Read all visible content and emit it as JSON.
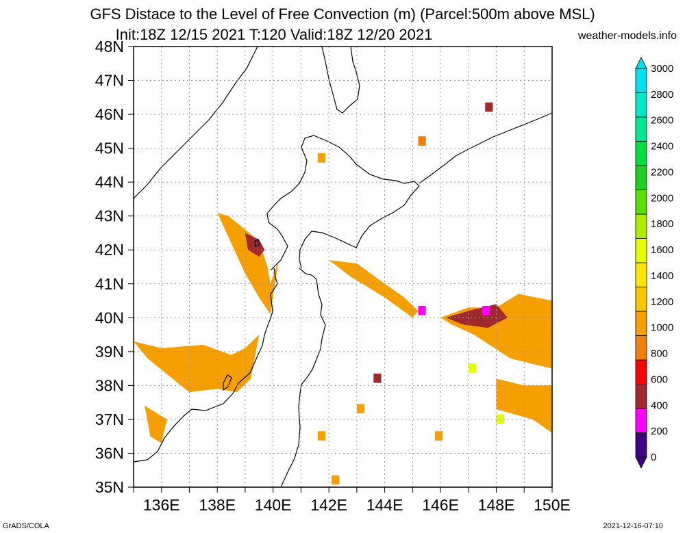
{
  "header": {
    "title_line1": "GFS Distace to the Level of Free Convection (m) (Parcel:500m above MSL)",
    "title_line2": "Init:18Z 12/15 2021 T:120 Valid:18Z 12/20 2021",
    "site": "weather-models.info"
  },
  "map": {
    "lat_labels": [
      "48N",
      "47N",
      "46N",
      "45N",
      "44N",
      "43N",
      "42N",
      "41N",
      "40N",
      "39N",
      "38N",
      "37N",
      "36N",
      "35N"
    ],
    "lon_labels": [
      "136E",
      "138E",
      "140E",
      "142E",
      "144E",
      "146E",
      "148E",
      "150E"
    ],
    "region": {
      "lon_min": 135,
      "lon_max": 150,
      "lat_min": 35,
      "lat_max": 48
    },
    "grid": true,
    "field_patches": [
      {
        "name": "hokkaido-west-coast",
        "lon": [
          138.0,
          138.4,
          139.3,
          139.6,
          139.8,
          139.9,
          140.2,
          139.9,
          139.5,
          139.0,
          138.5,
          138.0
        ],
        "lat": [
          43.1,
          43.0,
          42.4,
          42.0,
          41.5,
          41.0,
          41.7,
          40.1,
          40.6,
          41.3,
          42.2,
          43.1
        ],
        "value": 1000
      },
      {
        "name": "hokkaido-west-red",
        "lon": [
          139.0,
          139.5,
          139.7,
          139.5,
          139.1
        ],
        "lat": [
          42.5,
          42.3,
          42.0,
          41.8,
          42.0
        ],
        "value": 550
      },
      {
        "name": "sanriku-offshore",
        "lon": [
          142.0,
          143.0,
          144.0,
          144.7,
          145.2,
          145.0,
          144.0,
          142.8,
          142.0
        ],
        "lat": [
          41.7,
          41.6,
          41.0,
          40.6,
          40.2,
          40.0,
          40.6,
          41.2,
          41.7
        ],
        "value": 1000
      },
      {
        "name": "tohoku-west",
        "lon": [
          135.0,
          136.0,
          137.5,
          138.5,
          139.0,
          139.5,
          139.2,
          138.7,
          138.0,
          137.0,
          135.5
        ],
        "lat": [
          39.3,
          39.1,
          39.2,
          38.9,
          39.1,
          39.5,
          38.2,
          37.8,
          37.9,
          37.8,
          38.8
        ],
        "value": 1000
      },
      {
        "name": "east-offshore",
        "lon": [
          146.0,
          147.0,
          148.0,
          148.8,
          150.0,
          150.0,
          149.5,
          148.5,
          147.2,
          146.4
        ],
        "lat": [
          40.0,
          40.3,
          40.3,
          40.7,
          40.5,
          38.5,
          38.6,
          38.8,
          39.5,
          39.8
        ],
        "value": 1000
      },
      {
        "name": "east-offshore-red",
        "lon": [
          146.2,
          147.0,
          148.0,
          148.4,
          147.7,
          146.8
        ],
        "lat": [
          40.0,
          40.2,
          40.4,
          40.0,
          39.7,
          39.8
        ],
        "value": 550
      },
      {
        "name": "east-south",
        "lon": [
          148.0,
          149.0,
          150.0,
          150.0,
          149.3,
          148.0
        ],
        "lat": [
          38.2,
          38.0,
          38.0,
          36.6,
          37.0,
          37.3
        ],
        "value": 1000
      },
      {
        "name": "noto-south",
        "lon": [
          135.4,
          136.2,
          136.0,
          135.6
        ],
        "lat": [
          37.4,
          37.0,
          36.3,
          36.5
        ],
        "value": 1000
      }
    ],
    "cells": [
      {
        "name": "cell-45-145",
        "lon": 145.2,
        "lat": 45.1,
        "value": 900
      },
      {
        "name": "cell-46-147",
        "lon": 147.6,
        "lat": 46.1,
        "value": 550
      },
      {
        "name": "cell-44-141",
        "lon": 141.6,
        "lat": 44.6,
        "value": 1000
      },
      {
        "name": "cell-38-143",
        "lon": 143.6,
        "lat": 38.1,
        "value": 550
      },
      {
        "name": "cell-37-143",
        "lon": 143.0,
        "lat": 37.2,
        "value": 1000
      },
      {
        "name": "cell-38-146",
        "lon": 147.0,
        "lat": 38.4,
        "value": 1600
      },
      {
        "name": "cell-37-147",
        "lon": 148.0,
        "lat": 36.9,
        "value": 1600
      },
      {
        "name": "cell-36-141",
        "lon": 141.6,
        "lat": 36.4,
        "value": 1000
      },
      {
        "name": "cell-36-146",
        "lon": 145.8,
        "lat": 36.4,
        "value": 1000
      },
      {
        "name": "cell-35-142",
        "lon": 142.1,
        "lat": 35.1,
        "value": 1000
      },
      {
        "name": "cell-40-145",
        "lon": 145.2,
        "lat": 40.1,
        "value": 200
      },
      {
        "name": "cell-40-147",
        "lon": 147.5,
        "lat": 40.1,
        "value": 200
      }
    ]
  },
  "colorbar": {
    "labels": [
      "3000",
      "2800",
      "2600",
      "2400",
      "2200",
      "2000",
      "1800",
      "1600",
      "1400",
      "1200",
      "1000",
      "800",
      "600",
      "400",
      "200",
      "0"
    ],
    "colors": [
      "#400080",
      "#ff00ff",
      "#a0292b",
      "#ff0000",
      "#f0800a",
      "#f5a000",
      "#fac800",
      "#ffe600",
      "#e6ff00",
      "#aaf000",
      "#5ae000",
      "#20d020",
      "#00e040",
      "#00e890",
      "#00e8c8",
      "#00e0f0"
    ]
  },
  "footer": {
    "left": "GrADS/COLA",
    "right": "2021-12-16-07:10"
  }
}
